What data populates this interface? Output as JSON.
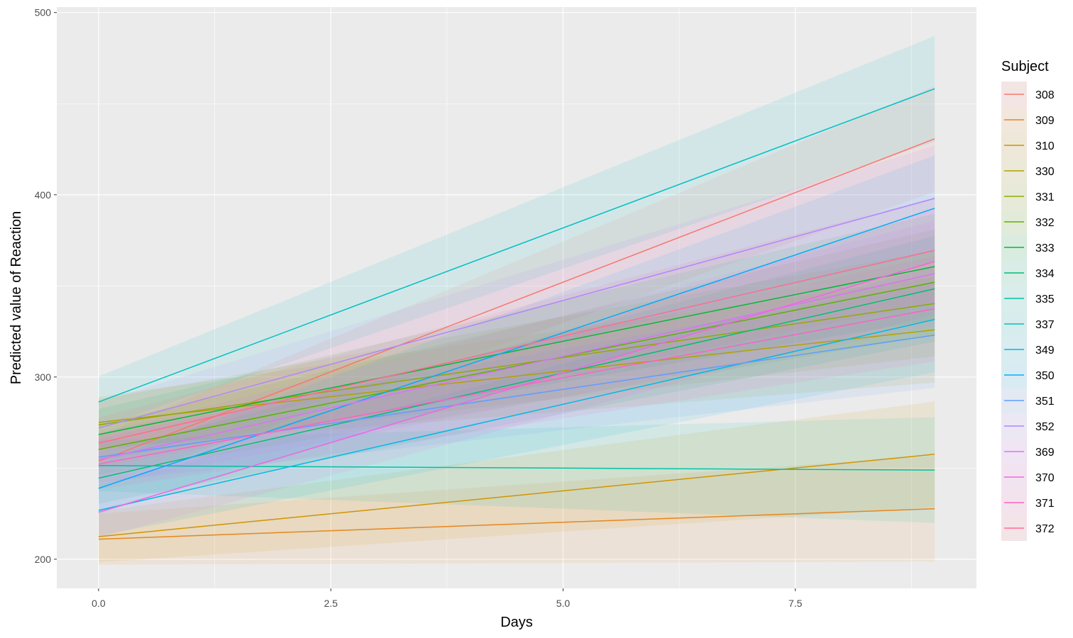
{
  "chart_data": {
    "type": "line",
    "title": "",
    "xlabel": "Days",
    "ylabel": "Predicted value of Reaction",
    "xlim": [
      -0.45,
      9.45
    ],
    "ylim": [
      184,
      503
    ],
    "x_ticks": [
      0,
      2.5,
      5,
      7.5
    ],
    "x_tick_labels": [
      "0.0",
      "2.5",
      "5.0",
      "7.5"
    ],
    "y_ticks": [
      200,
      300,
      400,
      500
    ],
    "y_tick_labels": [
      "200",
      "300",
      "400",
      "500"
    ],
    "grid": true,
    "panel_background": "#EBEBEB",
    "legend": {
      "title": "Subject",
      "position": "right"
    },
    "x": [
      0,
      9
    ],
    "ribbon_halfwidth": [
      14,
      29
    ],
    "series": [
      {
        "name": "308",
        "color": "#F8766D",
        "values": [
          253.7,
          430.7
        ]
      },
      {
        "name": "309",
        "color": "#E7851E",
        "values": [
          211.0,
          227.7
        ]
      },
      {
        "name": "310",
        "color": "#D09400",
        "values": [
          212.4,
          257.6
        ]
      },
      {
        "name": "330",
        "color": "#B2A100",
        "values": [
          275.1,
          325.9
        ]
      },
      {
        "name": "331",
        "color": "#8EAB00",
        "values": [
          273.7,
          340.3
        ]
      },
      {
        "name": "332",
        "color": "#5BB300",
        "values": [
          260.2,
          352.0
        ]
      },
      {
        "name": "333",
        "color": "#00BA38",
        "values": [
          268.4,
          360.6
        ]
      },
      {
        "name": "334",
        "color": "#00BF74",
        "values": [
          244.5,
          348.4
        ]
      },
      {
        "name": "335",
        "color": "#00C1A3",
        "values": [
          251.4,
          248.9
        ]
      },
      {
        "name": "337",
        "color": "#00BFC4",
        "values": [
          286.3,
          458.2
        ]
      },
      {
        "name": "349",
        "color": "#00B9E3",
        "values": [
          226.8,
          331.6
        ]
      },
      {
        "name": "350",
        "color": "#00ADFA",
        "values": [
          238.9,
          392.6
        ]
      },
      {
        "name": "351",
        "color": "#619CFF",
        "values": [
          256.0,
          323.0
        ]
      },
      {
        "name": "352",
        "color": "#AE87FF",
        "values": [
          272.0,
          398.0
        ]
      },
      {
        "name": "369",
        "color": "#DB72FB",
        "values": [
          254.7,
          356.7
        ]
      },
      {
        "name": "370",
        "color": "#F564E3",
        "values": [
          225.8,
          363.4
        ]
      },
      {
        "name": "371",
        "color": "#FF61C3",
        "values": [
          252.2,
          337.5
        ]
      },
      {
        "name": "372",
        "color": "#FF6C91",
        "values": [
          263.7,
          369.5
        ]
      }
    ]
  }
}
